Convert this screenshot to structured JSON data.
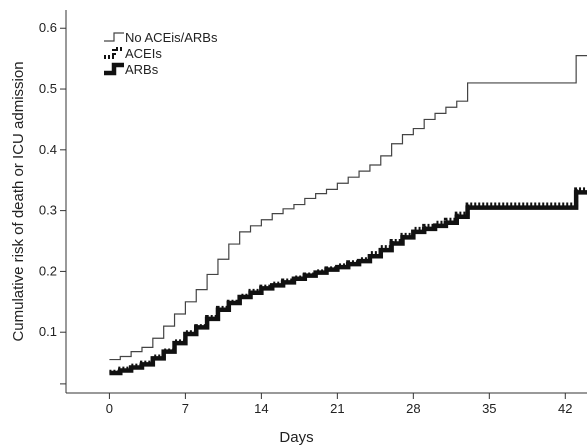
{
  "chart_data": {
    "type": "line",
    "title": "",
    "xlabel": "Days",
    "ylabel": "Cumulative risk of death or ICU admission",
    "xlim": [
      -4,
      44
    ],
    "ylim": [
      0.0,
      0.63
    ],
    "x_ticks": [
      0,
      7,
      14,
      21,
      28,
      35,
      42
    ],
    "x_tick_labels": [
      "0",
      "7",
      "14",
      "21",
      "28",
      "35",
      "42"
    ],
    "y_ticks": [
      0.1,
      0.2,
      0.3,
      0.4,
      0.5,
      0.6
    ],
    "y_tick_labels": [
      "0.1",
      "0.2",
      "0.3",
      "0.4",
      "0.5",
      "0.6"
    ],
    "grid": false,
    "legend_position": "top-left",
    "step": true,
    "series": [
      {
        "name": "No ACEis/ARBs",
        "style": "thin-solid",
        "x": [
          0,
          1,
          2,
          3,
          4,
          5,
          6,
          7,
          8,
          9,
          10,
          11,
          12,
          13,
          14,
          15,
          16,
          17,
          18,
          19,
          20,
          21,
          22,
          23,
          24,
          25,
          26,
          27,
          28,
          29,
          30,
          31,
          32,
          33,
          34,
          35,
          36,
          37,
          38,
          39,
          40,
          41,
          42,
          43,
          44
        ],
        "y": [
          0.055,
          0.06,
          0.068,
          0.075,
          0.09,
          0.11,
          0.13,
          0.15,
          0.17,
          0.195,
          0.22,
          0.245,
          0.265,
          0.275,
          0.285,
          0.295,
          0.303,
          0.31,
          0.32,
          0.328,
          0.335,
          0.345,
          0.355,
          0.365,
          0.375,
          0.39,
          0.41,
          0.425,
          0.435,
          0.45,
          0.46,
          0.47,
          0.48,
          0.51,
          0.51,
          0.51,
          0.51,
          0.51,
          0.51,
          0.51,
          0.51,
          0.51,
          0.51,
          0.555,
          0.555
        ]
      },
      {
        "name": "ACEIs",
        "style": "thick-dotted",
        "x": [
          0,
          1,
          2,
          3,
          4,
          5,
          6,
          7,
          8,
          9,
          10,
          11,
          12,
          13,
          14,
          15,
          16,
          17,
          18,
          19,
          20,
          21,
          22,
          23,
          24,
          25,
          26,
          27,
          28,
          29,
          30,
          31,
          32,
          33,
          34,
          35,
          36,
          37,
          38,
          39,
          40,
          41,
          42,
          43,
          44
        ],
        "y": [
          0.035,
          0.04,
          0.045,
          0.05,
          0.06,
          0.07,
          0.085,
          0.1,
          0.11,
          0.125,
          0.14,
          0.15,
          0.16,
          0.168,
          0.175,
          0.18,
          0.185,
          0.19,
          0.195,
          0.2,
          0.205,
          0.21,
          0.215,
          0.22,
          0.23,
          0.24,
          0.25,
          0.26,
          0.27,
          0.275,
          0.28,
          0.285,
          0.295,
          0.31,
          0.31,
          0.31,
          0.31,
          0.31,
          0.31,
          0.31,
          0.31,
          0.31,
          0.31,
          0.335,
          0.335
        ]
      },
      {
        "name": "ARBs",
        "style": "thick-solid",
        "x": [
          0,
          1,
          2,
          3,
          4,
          5,
          6,
          7,
          8,
          9,
          10,
          11,
          12,
          13,
          14,
          15,
          16,
          17,
          18,
          19,
          20,
          21,
          22,
          23,
          24,
          25,
          26,
          27,
          28,
          29,
          30,
          31,
          32,
          33,
          34,
          35,
          36,
          37,
          38,
          39,
          40,
          41,
          42,
          43,
          44
        ],
        "y": [
          0.033,
          0.037,
          0.042,
          0.047,
          0.057,
          0.068,
          0.082,
          0.097,
          0.108,
          0.122,
          0.137,
          0.148,
          0.158,
          0.165,
          0.172,
          0.177,
          0.182,
          0.188,
          0.193,
          0.198,
          0.203,
          0.207,
          0.212,
          0.217,
          0.225,
          0.235,
          0.246,
          0.256,
          0.265,
          0.27,
          0.275,
          0.28,
          0.29,
          0.305,
          0.305,
          0.305,
          0.305,
          0.305,
          0.305,
          0.305,
          0.305,
          0.305,
          0.305,
          0.33,
          0.33
        ]
      }
    ]
  }
}
